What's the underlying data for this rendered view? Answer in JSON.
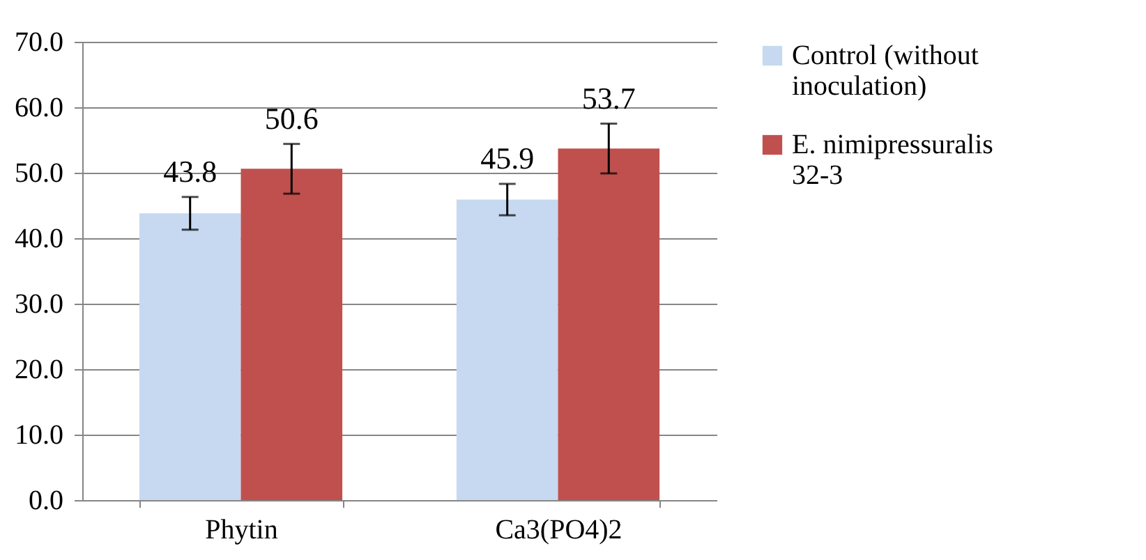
{
  "chart_data": {
    "type": "bar",
    "categories": [
      "Phytin",
      "Ca3(PO4)2"
    ],
    "series": [
      {
        "name": "Control (without inoculation)",
        "color": "#c6d9f1",
        "values": [
          43.8,
          45.9
        ],
        "errors": [
          2.5,
          2.4
        ]
      },
      {
        "name": "E. nimipressuralis 32-3",
        "color": "#c0504d",
        "values": [
          50.6,
          53.7
        ],
        "errors": [
          3.8,
          3.8
        ]
      }
    ],
    "data_labels": true,
    "ylim": [
      0,
      70
    ],
    "yticks": [
      {
        "value": 0,
        "label": "0.0"
      },
      {
        "value": 10,
        "label": "10.0"
      },
      {
        "value": 20,
        "label": "20.0"
      },
      {
        "value": 30,
        "label": "30.0"
      },
      {
        "value": 40,
        "label": "40.0"
      },
      {
        "value": 50,
        "label": "50.0"
      },
      {
        "value": 60,
        "label": "60.0"
      },
      {
        "value": 70,
        "label": "70.0"
      }
    ],
    "grid": "y",
    "legend": "right"
  }
}
